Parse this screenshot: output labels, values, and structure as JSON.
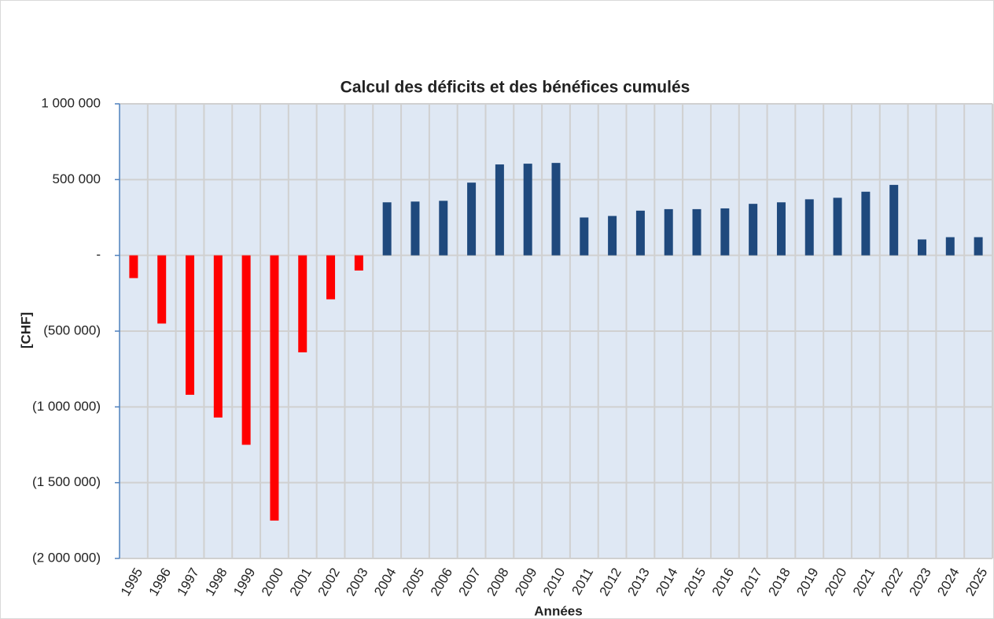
{
  "chart_data": {
    "type": "bar",
    "title": "Calcul des déficits et des bénéfices cumulés",
    "x_label": "Années",
    "y_label": "[CHF]",
    "categories": [
      "1995",
      "1996",
      "1997",
      "1998",
      "1999",
      "2000",
      "2001",
      "2002",
      "2003",
      "2004",
      "2005",
      "2006",
      "2007",
      "2008",
      "2009",
      "2010",
      "2011",
      "2012",
      "2013",
      "2014",
      "2015",
      "2016",
      "2017",
      "2018",
      "2019",
      "2020",
      "2021",
      "2022",
      "2023",
      "2024",
      "2025"
    ],
    "values": [
      -150000,
      -450000,
      -920000,
      -1070000,
      -1250000,
      -1750000,
      -640000,
      -290000,
      -100000,
      350000,
      355000,
      360000,
      480000,
      600000,
      605000,
      610000,
      250000,
      260000,
      295000,
      305000,
      305000,
      310000,
      340000,
      350000,
      370000,
      380000,
      420000,
      465000,
      105000,
      120000,
      120000
    ],
    "color_positive": "#1f497d",
    "color_negative": "#ff0000",
    "ylim": [
      -2000000,
      1000000
    ],
    "yticks": [
      {
        "value": -2000000,
        "label": "(2 000 000)"
      },
      {
        "value": -1500000,
        "label": "(1 500 000)"
      },
      {
        "value": -1000000,
        "label": "(1 000 000)"
      },
      {
        "value": -500000,
        "label": "(500 000)"
      },
      {
        "value": 0,
        "label": "-"
      },
      {
        "value": 500000,
        "label": "500 000"
      },
      {
        "value": 1000000,
        "label": "1 000 000"
      }
    ],
    "grid": true,
    "plot_background": "#dfe8f4"
  }
}
